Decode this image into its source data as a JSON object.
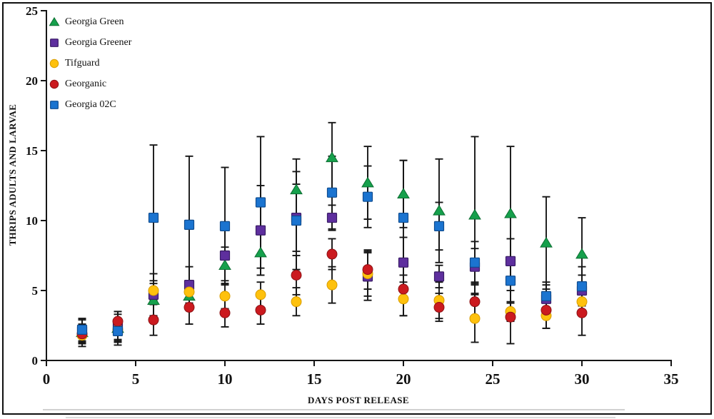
{
  "figure": {
    "border_color": "#101010",
    "background": "#ffffff"
  },
  "chart_data": {
    "type": "scatter",
    "title": "",
    "xlabel": "DAYS POST RELEASE",
    "ylabel": "THRIPS ADULTS AND LARVAE",
    "xlim": [
      0,
      35
    ],
    "ylim": [
      0,
      25
    ],
    "xticks": [
      0,
      5,
      10,
      15,
      20,
      25,
      30,
      35
    ],
    "yticks": [
      0,
      5,
      10,
      15,
      20,
      25
    ],
    "grid": false,
    "legend_position": "upper-left-inside",
    "error_bars": true,
    "x": [
      2,
      4,
      6,
      8,
      10,
      12,
      14,
      16,
      18,
      20,
      22,
      24,
      26,
      28,
      30
    ],
    "series": [
      {
        "name": "Georgia Green",
        "marker": "triangle",
        "color": "#16a04c",
        "stroke": "#0b6e31",
        "values": [
          2.0,
          2.3,
          4.3,
          4.6,
          6.8,
          7.7,
          12.2,
          14.5,
          12.7,
          11.9,
          10.7,
          10.4,
          10.5,
          8.4,
          7.6
        ],
        "errors": [
          1.0,
          1.2,
          1.2,
          1.0,
          1.3,
          1.6,
          2.2,
          2.5,
          2.6,
          2.4,
          3.7,
          5.6,
          4.8,
          3.3,
          2.6
        ]
      },
      {
        "name": "Georgia Greener",
        "marker": "square",
        "color": "#5e2f9e",
        "stroke": "#3a1d66",
        "values": [
          2.1,
          2.4,
          4.7,
          5.4,
          7.5,
          9.3,
          10.2,
          10.2,
          6.0,
          7.0,
          6.0,
          6.7,
          7.1,
          4.4,
          5.0
        ],
        "errors": [
          0.8,
          0.9,
          1.5,
          1.3,
          1.8,
          3.2,
          2.4,
          0.9,
          1.7,
          1.8,
          0.8,
          1.3,
          1.6,
          1.0,
          1.1
        ]
      },
      {
        "name": "Tifguard",
        "marker": "circle",
        "color": "#fec10d",
        "stroke": "#d89c00",
        "values": [
          1.8,
          2.2,
          5.0,
          4.9,
          4.6,
          4.7,
          4.2,
          5.4,
          6.2,
          4.4,
          4.3,
          3.0,
          3.5,
          3.2,
          4.2
        ],
        "errors": [
          0.6,
          0.8,
          0.7,
          0.8,
          0.9,
          0.9,
          1.0,
          1.3,
          1.6,
          1.2,
          1.3,
          1.7,
          0.7,
          0.9,
          0.9
        ]
      },
      {
        "name": "Georganic",
        "marker": "circle",
        "color": "#cb1a1f",
        "stroke": "#8c1114",
        "values": [
          1.9,
          2.8,
          2.9,
          3.8,
          3.4,
          3.6,
          6.1,
          7.6,
          6.5,
          5.1,
          3.8,
          4.2,
          3.1,
          3.6,
          3.4
        ],
        "errors": [
          0.7,
          0.7,
          1.1,
          1.2,
          1.0,
          1.0,
          1.4,
          1.1,
          1.4,
          1.9,
          1.0,
          1.4,
          1.9,
          1.3,
          1.6
        ]
      },
      {
        "name": "Georgia 02C",
        "marker": "square",
        "color": "#1b74d0",
        "stroke": "#0f4c8f",
        "values": [
          2.2,
          2.1,
          10.2,
          9.7,
          9.6,
          11.3,
          10.0,
          12.0,
          11.7,
          10.2,
          9.6,
          7.0,
          5.7,
          4.6,
          5.3
        ],
        "errors": [
          0.8,
          0.8,
          5.2,
          4.9,
          4.2,
          4.7,
          3.5,
          2.6,
          2.2,
          4.1,
          1.7,
          1.5,
          1.6,
          1.0,
          1.4
        ]
      }
    ]
  }
}
